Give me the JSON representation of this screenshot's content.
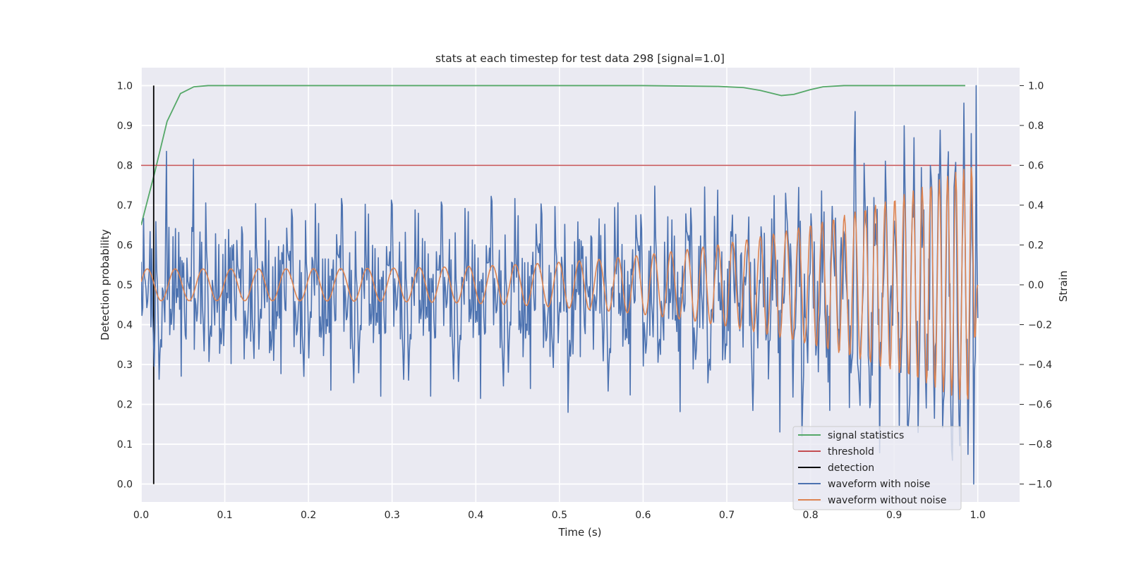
{
  "chart_data": {
    "type": "line",
    "title": "stats at each timestep for test data 298 [signal=1.0]",
    "xlabel": "Time (s)",
    "ylabel_left": "Detection probability",
    "ylabel_right": "Strain",
    "xlim": [
      0.0,
      1.05
    ],
    "ylim_left": [
      -0.045,
      1.045
    ],
    "ylim_right": [
      -1.09,
      1.09
    ],
    "x_ticks": [
      0.0,
      0.1,
      0.2,
      0.3,
      0.4,
      0.5,
      0.6,
      0.7,
      0.8,
      0.9,
      1.0
    ],
    "x_tick_labels": [
      "0.0",
      "0.1",
      "0.2",
      "0.3",
      "0.4",
      "0.5",
      "0.6",
      "0.7",
      "0.8",
      "0.9",
      "1.0"
    ],
    "y_left_ticks": [
      0.0,
      0.1,
      0.2,
      0.3,
      0.4,
      0.5,
      0.6,
      0.7,
      0.8,
      0.9,
      1.0
    ],
    "y_left_tick_labels": [
      "0.0",
      "0.1",
      "0.2",
      "0.3",
      "0.4",
      "0.5",
      "0.6",
      "0.7",
      "0.8",
      "0.9",
      "1.0"
    ],
    "y_right_ticks": [
      -1.0,
      -0.8,
      -0.6,
      -0.4,
      -0.2,
      0.0,
      0.2,
      0.4,
      0.6,
      0.8,
      1.0
    ],
    "y_right_tick_labels": [
      "−1.0",
      "−0.8",
      "−0.6",
      "−0.4",
      "−0.2",
      "0.0",
      "0.2",
      "0.4",
      "0.6",
      "0.8",
      "1.0"
    ],
    "grid": true,
    "legend_position": "lower-right",
    "series": [
      {
        "name": "signal statistics",
        "axis": "left",
        "color": "#55a868",
        "x": [
          0.0,
          0.016,
          0.031,
          0.047,
          0.063,
          0.08,
          0.2,
          0.4,
          0.6,
          0.69,
          0.72,
          0.74,
          0.765,
          0.78,
          0.8,
          0.815,
          0.84,
          0.9,
          0.985
        ],
        "y": [
          0.65,
          0.78,
          0.91,
          0.98,
          0.997,
          1.0,
          1.0,
          1.0,
          1.0,
          0.998,
          0.995,
          0.988,
          0.975,
          0.978,
          0.99,
          0.997,
          1.0,
          1.0,
          1.0
        ]
      },
      {
        "name": "threshold",
        "axis": "left",
        "color": "#c44e52",
        "x": [
          0.0,
          1.04
        ],
        "y": [
          0.8,
          0.8
        ]
      },
      {
        "name": "detection",
        "axis": "left",
        "color": "#000000",
        "x": [
          0.015,
          0.015
        ],
        "y": [
          0.0,
          1.0
        ]
      },
      {
        "name": "waveform with noise",
        "axis": "right",
        "color": "#4c72b0",
        "x_range": [
          0.0,
          1.0
        ],
        "n_points": 1024,
        "description_only_color": true,
        "peaks": [
          {
            "x": 0.03,
            "y": 0.67
          },
          {
            "x": 0.063,
            "y": 0.63
          },
          {
            "x": 0.853,
            "y": 0.87
          },
          {
            "x": 0.998,
            "y": 1.0
          },
          {
            "x": 0.51,
            "y": -0.64
          },
          {
            "x": 0.79,
            "y": -0.76
          },
          {
            "x": 0.995,
            "y": -1.0
          }
        ]
      },
      {
        "name": "waveform without noise",
        "axis": "right",
        "color": "#dd8452",
        "x_range": [
          0.0,
          1.0
        ],
        "n_points": 1024,
        "amplitude_start": 0.08,
        "amplitude_end": 0.62,
        "frequency_start_hz": 30,
        "frequency_end_hz": 110
      }
    ]
  }
}
